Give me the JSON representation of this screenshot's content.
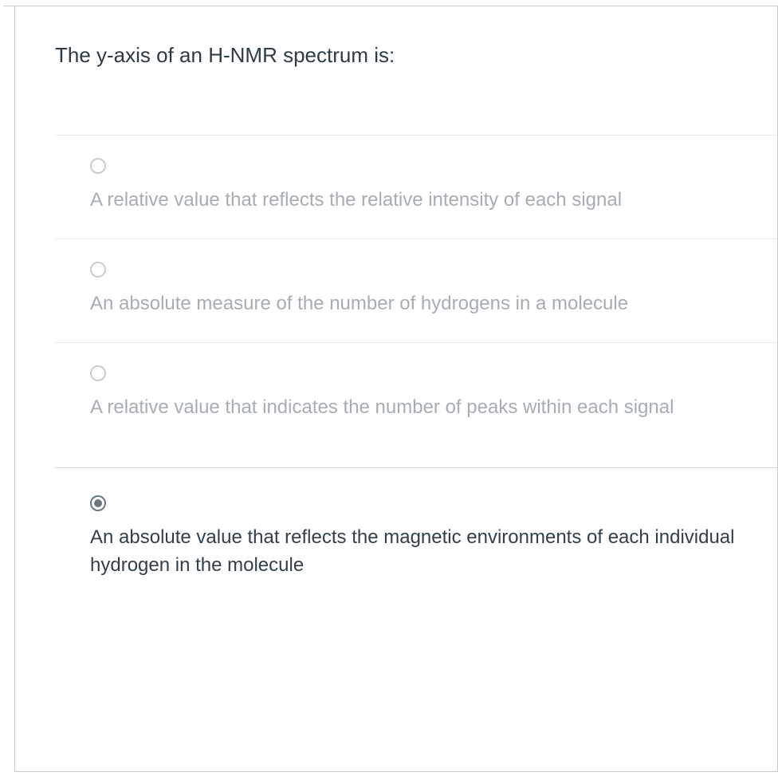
{
  "question": {
    "text": "The y-axis of an H-NMR spectrum is:"
  },
  "options": [
    {
      "text": "A relative value that reflects the relative intensity of each signal",
      "selected": false
    },
    {
      "text": "An absolute measure of the number of hydrogens in a molecule",
      "selected": false
    },
    {
      "text": "A relative value that indicates the number of peaks within each signal",
      "selected": false
    },
    {
      "text": "An absolute value that reflects the magnetic environments of each individual hydrogen in the molecule",
      "selected": true
    }
  ],
  "colors": {
    "text_primary": "#2d3b45",
    "text_muted": "#a7adb3",
    "text_selected": "#333f48",
    "border": "#c7ccd1",
    "divider": "#e8eaed"
  }
}
